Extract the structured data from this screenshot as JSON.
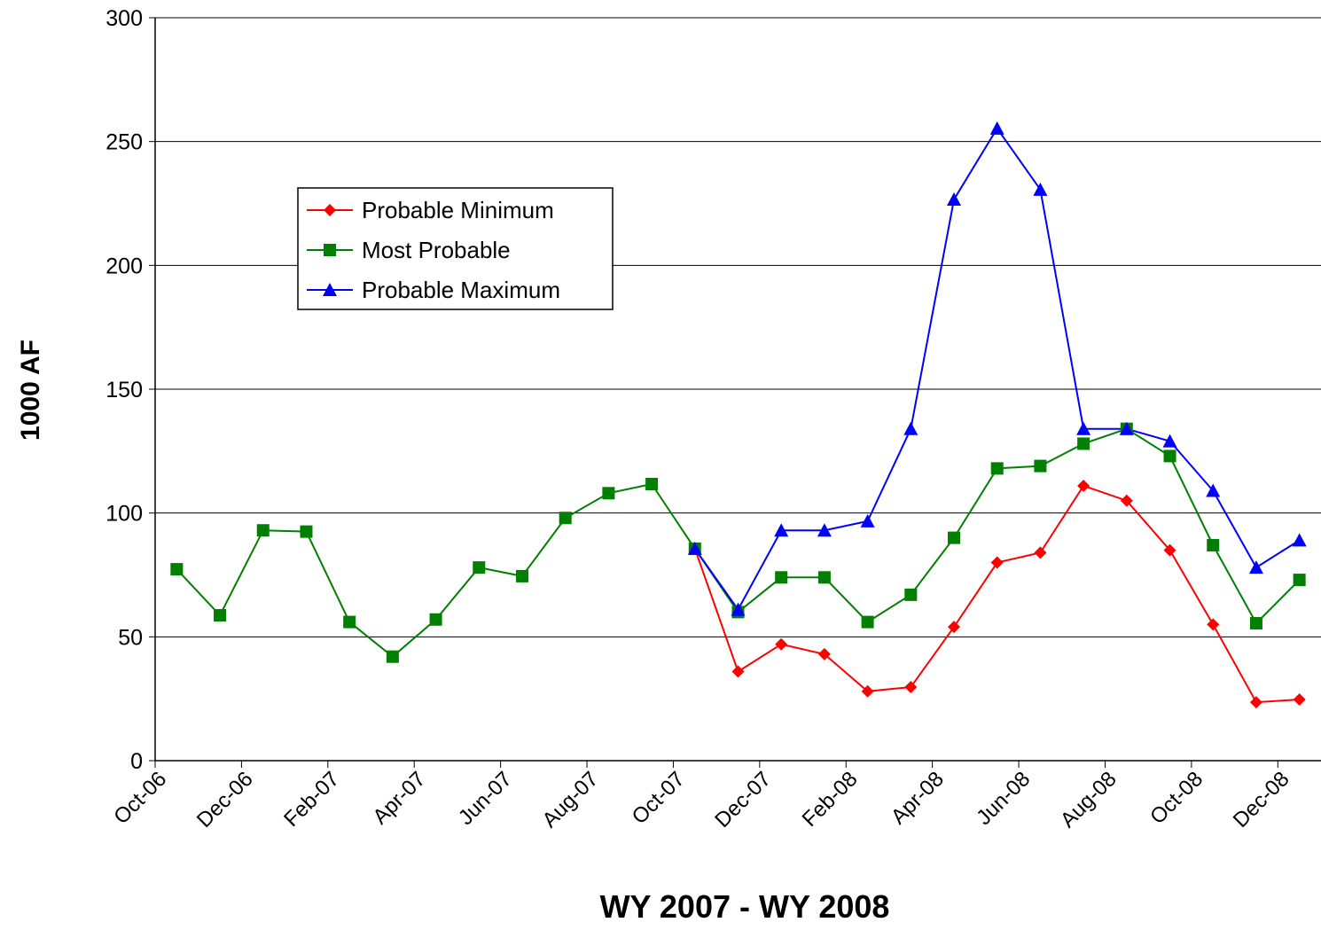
{
  "chart_data": {
    "type": "line",
    "xlabel": "WY 2007 - WY 2008",
    "ylabel": "1000 AF",
    "categories": [
      "Oct-06",
      null,
      "Dec-06",
      null,
      "Feb-07",
      null,
      "Apr-07",
      null,
      "Jun-07",
      null,
      "Aug-07",
      null,
      "Oct-07",
      null,
      "Dec-07",
      null,
      "Feb-08",
      null,
      "Apr-08",
      null,
      "Jun-08",
      null,
      "Aug-08",
      null,
      "Oct-08",
      null,
      "Dec-08"
    ],
    "ylim": [
      0,
      300
    ],
    "yticks": [
      0,
      50,
      100,
      150,
      200,
      250,
      300
    ],
    "grid": true,
    "legend": "upper left",
    "series": [
      {
        "name": "Probable Minimum",
        "color": "#ff0000",
        "marker": "diamond",
        "values": [
          null,
          null,
          null,
          null,
          null,
          null,
          null,
          null,
          null,
          null,
          null,
          null,
          85.6,
          36,
          47,
          43,
          28,
          29.7,
          54,
          80,
          84,
          111,
          105,
          85,
          55,
          23.6,
          24.7
        ]
      },
      {
        "name": "Most Probable",
        "color": "#008000",
        "marker": "square",
        "values": [
          77.3,
          58.7,
          93,
          92.5,
          56,
          42,
          57,
          78,
          74.5,
          98,
          108,
          111.7,
          85.6,
          60,
          74,
          74,
          56,
          67,
          90,
          118,
          119,
          128,
          134,
          123,
          87,
          55.5,
          73
        ]
      },
      {
        "name": "Probable Maximum",
        "color": "#0000ff",
        "marker": "triangle",
        "values": [
          null,
          null,
          null,
          null,
          null,
          null,
          null,
          null,
          null,
          null,
          null,
          null,
          85.6,
          61,
          93,
          93,
          96.7,
          134,
          226.6,
          255.3,
          230.6,
          134,
          134,
          129,
          109,
          78,
          89
        ]
      }
    ]
  }
}
